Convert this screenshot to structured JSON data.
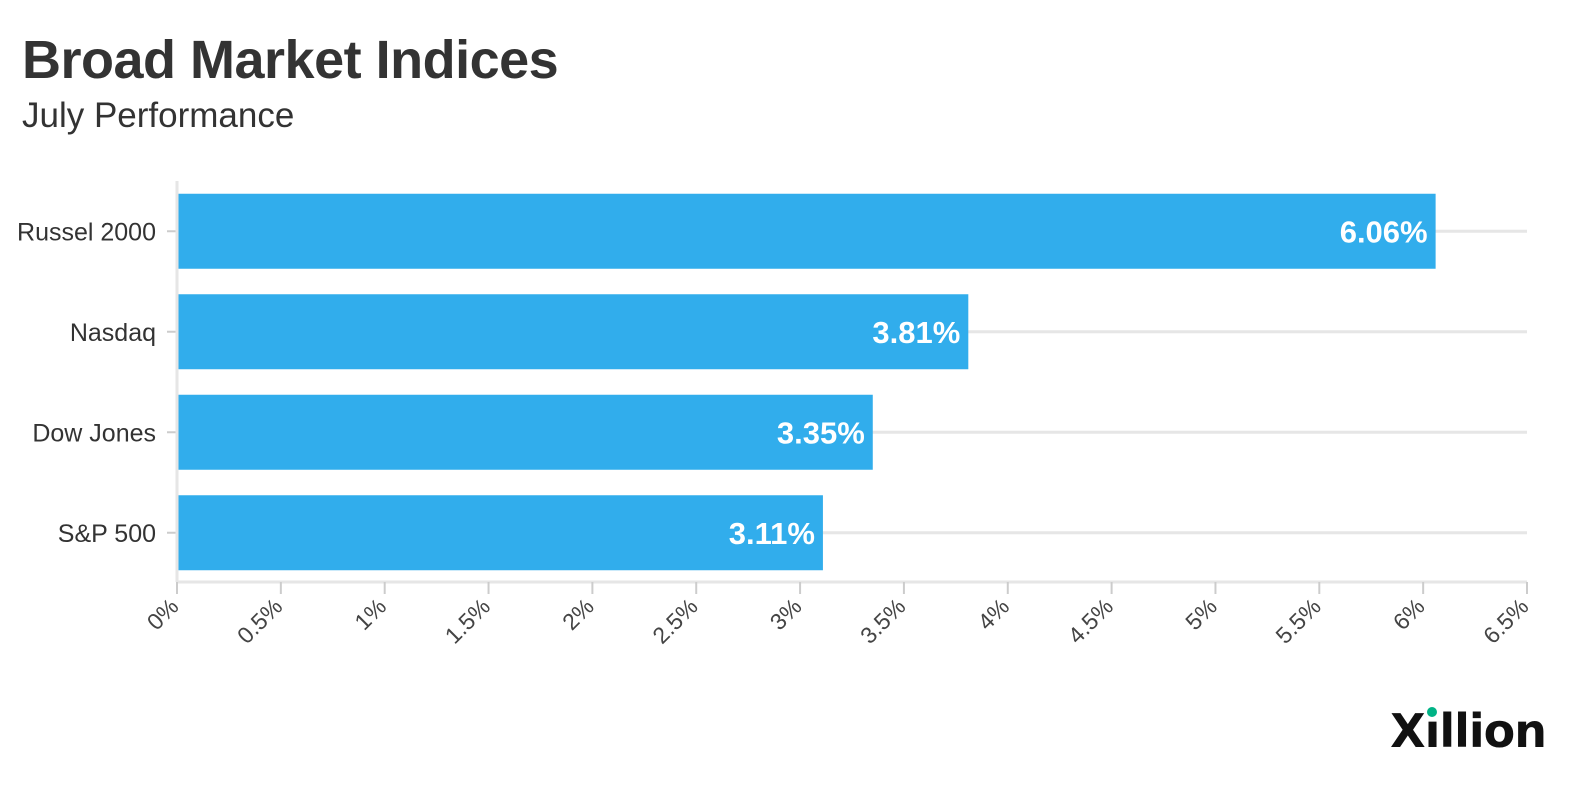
{
  "chart_data": {
    "type": "bar",
    "orientation": "horizontal",
    "title": "Broad Market Indices",
    "subtitle": "July Performance",
    "categories": [
      "Russel 2000",
      "Nasdaq",
      "Dow Jones",
      "S&P 500"
    ],
    "values": [
      6.06,
      3.81,
      3.35,
      3.11
    ],
    "value_labels": [
      "6.06%",
      "3.81%",
      "3.35%",
      "3.11%"
    ],
    "xlim": [
      0,
      6.5
    ],
    "xticks": [
      0,
      0.5,
      1,
      1.5,
      2,
      2.5,
      3,
      3.5,
      4,
      4.5,
      5,
      5.5,
      6,
      6.5
    ],
    "xtick_labels": [
      "0%",
      "0.5%",
      "1%",
      "1.5%",
      "2%",
      "2.5%",
      "3%",
      "3.5%",
      "4%",
      "4.5%",
      "5%",
      "5.5%",
      "6%",
      "6.5%"
    ],
    "xlabel": "",
    "ylabel": "",
    "grid": true,
    "legend": "none",
    "bar_color": "#31adec",
    "label_color": "#ffffff",
    "text_color": "#333333"
  },
  "brand": {
    "name": "Xillion",
    "accent_color": "#00b386"
  }
}
